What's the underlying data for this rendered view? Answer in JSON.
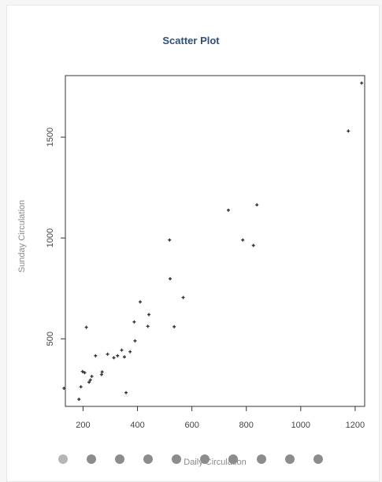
{
  "chart_data": {
    "type": "scatter",
    "title": "Scatter Plot",
    "xlabel": "Daily Circulation",
    "ylabel": "Sunday Circulation",
    "xlim": [
      135,
      1235
    ],
    "ylim": [
      165,
      1805
    ],
    "xticks": [
      200,
      400,
      600,
      800,
      1000,
      1200
    ],
    "yticks": [
      500,
      1000,
      1500
    ],
    "grid": false,
    "color": "#333333",
    "points": [
      {
        "x": 130,
        "y": 255
      },
      {
        "x": 185,
        "y": 200
      },
      {
        "x": 192,
        "y": 262
      },
      {
        "x": 198,
        "y": 338
      },
      {
        "x": 206,
        "y": 332
      },
      {
        "x": 212,
        "y": 557
      },
      {
        "x": 222,
        "y": 285
      },
      {
        "x": 227,
        "y": 296
      },
      {
        "x": 232,
        "y": 314
      },
      {
        "x": 246,
        "y": 416
      },
      {
        "x": 268,
        "y": 323
      },
      {
        "x": 270,
        "y": 336
      },
      {
        "x": 290,
        "y": 424
      },
      {
        "x": 313,
        "y": 406
      },
      {
        "x": 327,
        "y": 416
      },
      {
        "x": 342,
        "y": 444
      },
      {
        "x": 352,
        "y": 410
      },
      {
        "x": 358,
        "y": 233
      },
      {
        "x": 373,
        "y": 436
      },
      {
        "x": 388,
        "y": 584
      },
      {
        "x": 391,
        "y": 490
      },
      {
        "x": 410,
        "y": 683
      },
      {
        "x": 438,
        "y": 562
      },
      {
        "x": 442,
        "y": 620
      },
      {
        "x": 518,
        "y": 990
      },
      {
        "x": 520,
        "y": 798
      },
      {
        "x": 535,
        "y": 560
      },
      {
        "x": 568,
        "y": 705
      },
      {
        "x": 734,
        "y": 1138
      },
      {
        "x": 787,
        "y": 990
      },
      {
        "x": 826,
        "y": 963
      },
      {
        "x": 839,
        "y": 1164
      },
      {
        "x": 1175,
        "y": 1530
      },
      {
        "x": 1224,
        "y": 1768
      }
    ]
  },
  "carousel": {
    "dots": 10,
    "active_index": 0,
    "dot_color": "#8c8c8c"
  }
}
